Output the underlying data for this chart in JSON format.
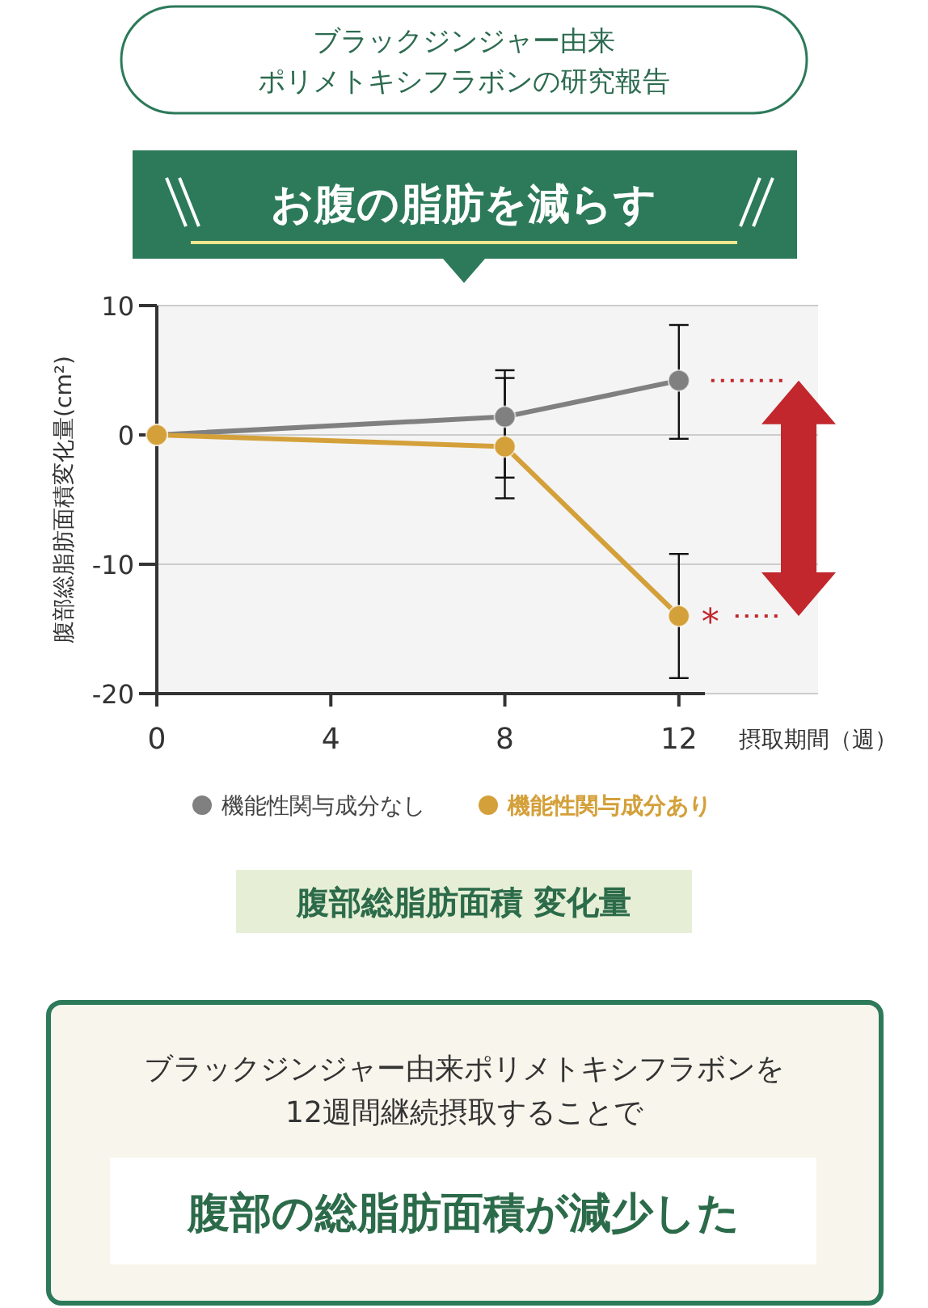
{
  "chart_data": {
    "type": "line",
    "title": "お腹の脂肪を減らす",
    "subtitle": "ブラックジンジャー由来ポリメトキシフラボンの研究報告",
    "ylabel": "腹部総脂肪面積変化量(cm²)",
    "xlabel": "摂取期間（週）",
    "x": [
      0,
      8,
      12
    ],
    "series": [
      {
        "name": "機能性関与成分なし",
        "color": "#808080",
        "values": [
          0,
          1.4,
          4.2
        ],
        "errors": [
          null,
          [
            -3.3,
            5.0
          ],
          [
            -0.3,
            8.5
          ]
        ]
      },
      {
        "name": "機能性関与成分あり",
        "color": "#d4a03a",
        "values": [
          0,
          -0.9,
          -14.0
        ],
        "errors": [
          null,
          [
            -4.9,
            4.4
          ],
          [
            -18.8,
            -9.2
          ]
        ]
      }
    ],
    "xlim": [
      0,
      15.2
    ],
    "xticks": [
      0,
      4,
      8,
      12
    ],
    "ylim": [
      -20,
      10
    ],
    "yticks": [
      -20,
      -10,
      0,
      10
    ],
    "grid": "y",
    "legend": "bottom",
    "marker": "circle",
    "line_style": "solid",
    "annotations": [
      {
        "text": "*",
        "x": 12,
        "y": -14.0
      },
      "腹部総脂肪面積 変化量",
      "ブラックジンジャー由来ポリメトキシフラボンを\n12週間継続摂取することで",
      "腹部の総脂肪面積が減少した"
    ]
  }
}
